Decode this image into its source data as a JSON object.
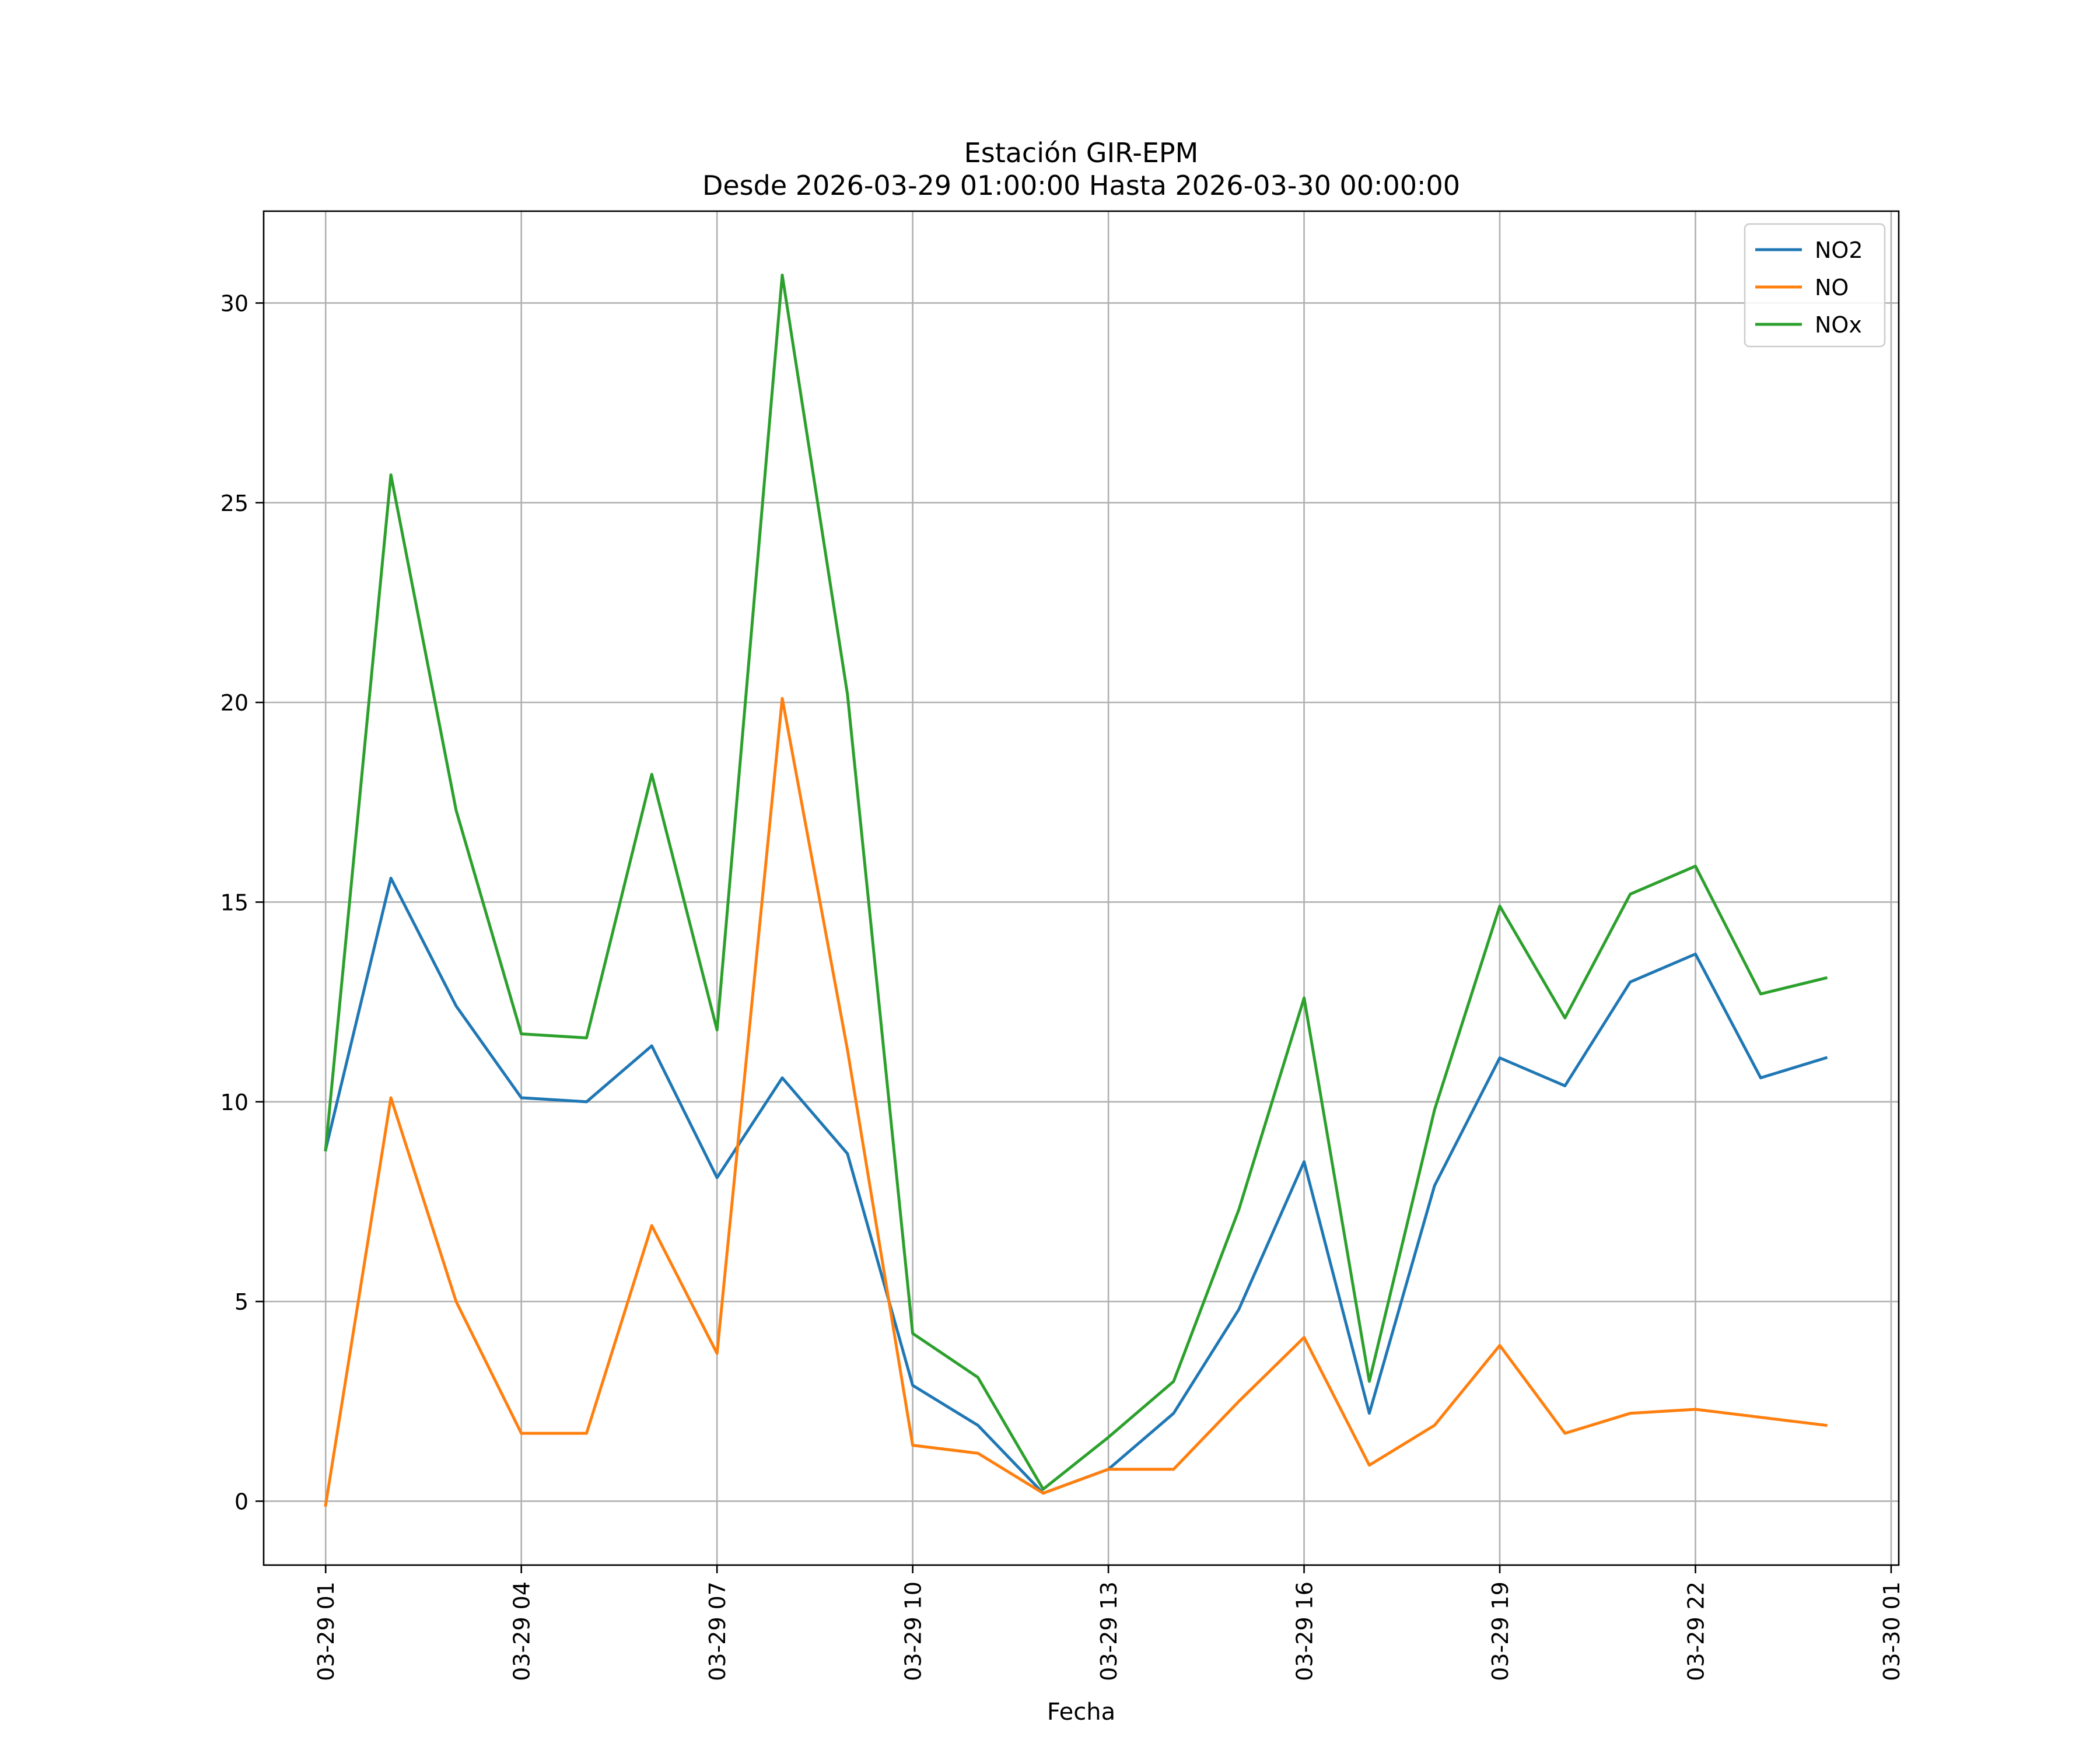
{
  "chart_data": {
    "type": "line",
    "title": "Estación GIR-EPM",
    "subtitle": "Desde 2026-03-29 01:00:00 Hasta 2026-03-30 00:00:00",
    "xlabel": "Fecha",
    "ylabel": "",
    "x": [
      "2026-03-29 01:00",
      "2026-03-29 02:00",
      "2026-03-29 03:00",
      "2026-03-29 04:00",
      "2026-03-29 05:00",
      "2026-03-29 06:00",
      "2026-03-29 07:00",
      "2026-03-29 08:00",
      "2026-03-29 09:00",
      "2026-03-29 10:00",
      "2026-03-29 11:00",
      "2026-03-29 12:00",
      "2026-03-29 13:00",
      "2026-03-29 14:00",
      "2026-03-29 15:00",
      "2026-03-29 16:00",
      "2026-03-29 17:00",
      "2026-03-29 18:00",
      "2026-03-29 19:00",
      "2026-03-29 20:00",
      "2026-03-29 21:00",
      "2026-03-29 22:00",
      "2026-03-29 23:00",
      "2026-03-30 00:00"
    ],
    "xlim": [
      "2026-03-29 00:03",
      "2026-03-30 01:07"
    ],
    "ylim": [
      -1.6,
      32.3
    ],
    "x_tick_labels": [
      "03-29 01",
      "03-29 04",
      "03-29 07",
      "03-29 10",
      "03-29 13",
      "03-29 16",
      "03-29 19",
      "03-29 22",
      "03-30 01"
    ],
    "x_tick_values": [
      "2026-03-29 01:00",
      "2026-03-29 04:00",
      "2026-03-29 07:00",
      "2026-03-29 10:00",
      "2026-03-29 13:00",
      "2026-03-29 16:00",
      "2026-03-29 19:00",
      "2026-03-29 22:00",
      "2026-03-30 01:00"
    ],
    "y_ticks": [
      0,
      5,
      10,
      15,
      20,
      25,
      30
    ],
    "grid": true,
    "legend_position": "top-right",
    "series": [
      {
        "name": "NO2",
        "color": "#1f77b4",
        "values": [
          8.8,
          15.6,
          12.4,
          10.1,
          10.0,
          11.4,
          8.1,
          10.6,
          8.7,
          2.9,
          1.9,
          0.2,
          0.8,
          2.2,
          4.8,
          8.5,
          2.2,
          7.9,
          11.1,
          10.4,
          13.0,
          13.7,
          10.6,
          11.1
        ]
      },
      {
        "name": "NO",
        "color": "#ff7f0e",
        "values": [
          -0.1,
          10.1,
          5.0,
          1.7,
          1.7,
          6.9,
          3.7,
          20.1,
          11.3,
          1.4,
          1.2,
          0.2,
          0.8,
          0.8,
          2.5,
          4.1,
          0.9,
          1.9,
          3.9,
          1.7,
          2.2,
          2.3,
          2.1,
          1.9
        ]
      },
      {
        "name": "NOx",
        "color": "#2ca02c",
        "values": [
          8.8,
          25.7,
          17.3,
          11.7,
          11.6,
          18.2,
          11.8,
          30.7,
          20.2,
          4.2,
          3.1,
          0.3,
          1.6,
          3.0,
          7.3,
          12.6,
          3.0,
          9.8,
          14.9,
          12.1,
          15.2,
          15.9,
          12.7,
          13.1
        ]
      }
    ]
  }
}
